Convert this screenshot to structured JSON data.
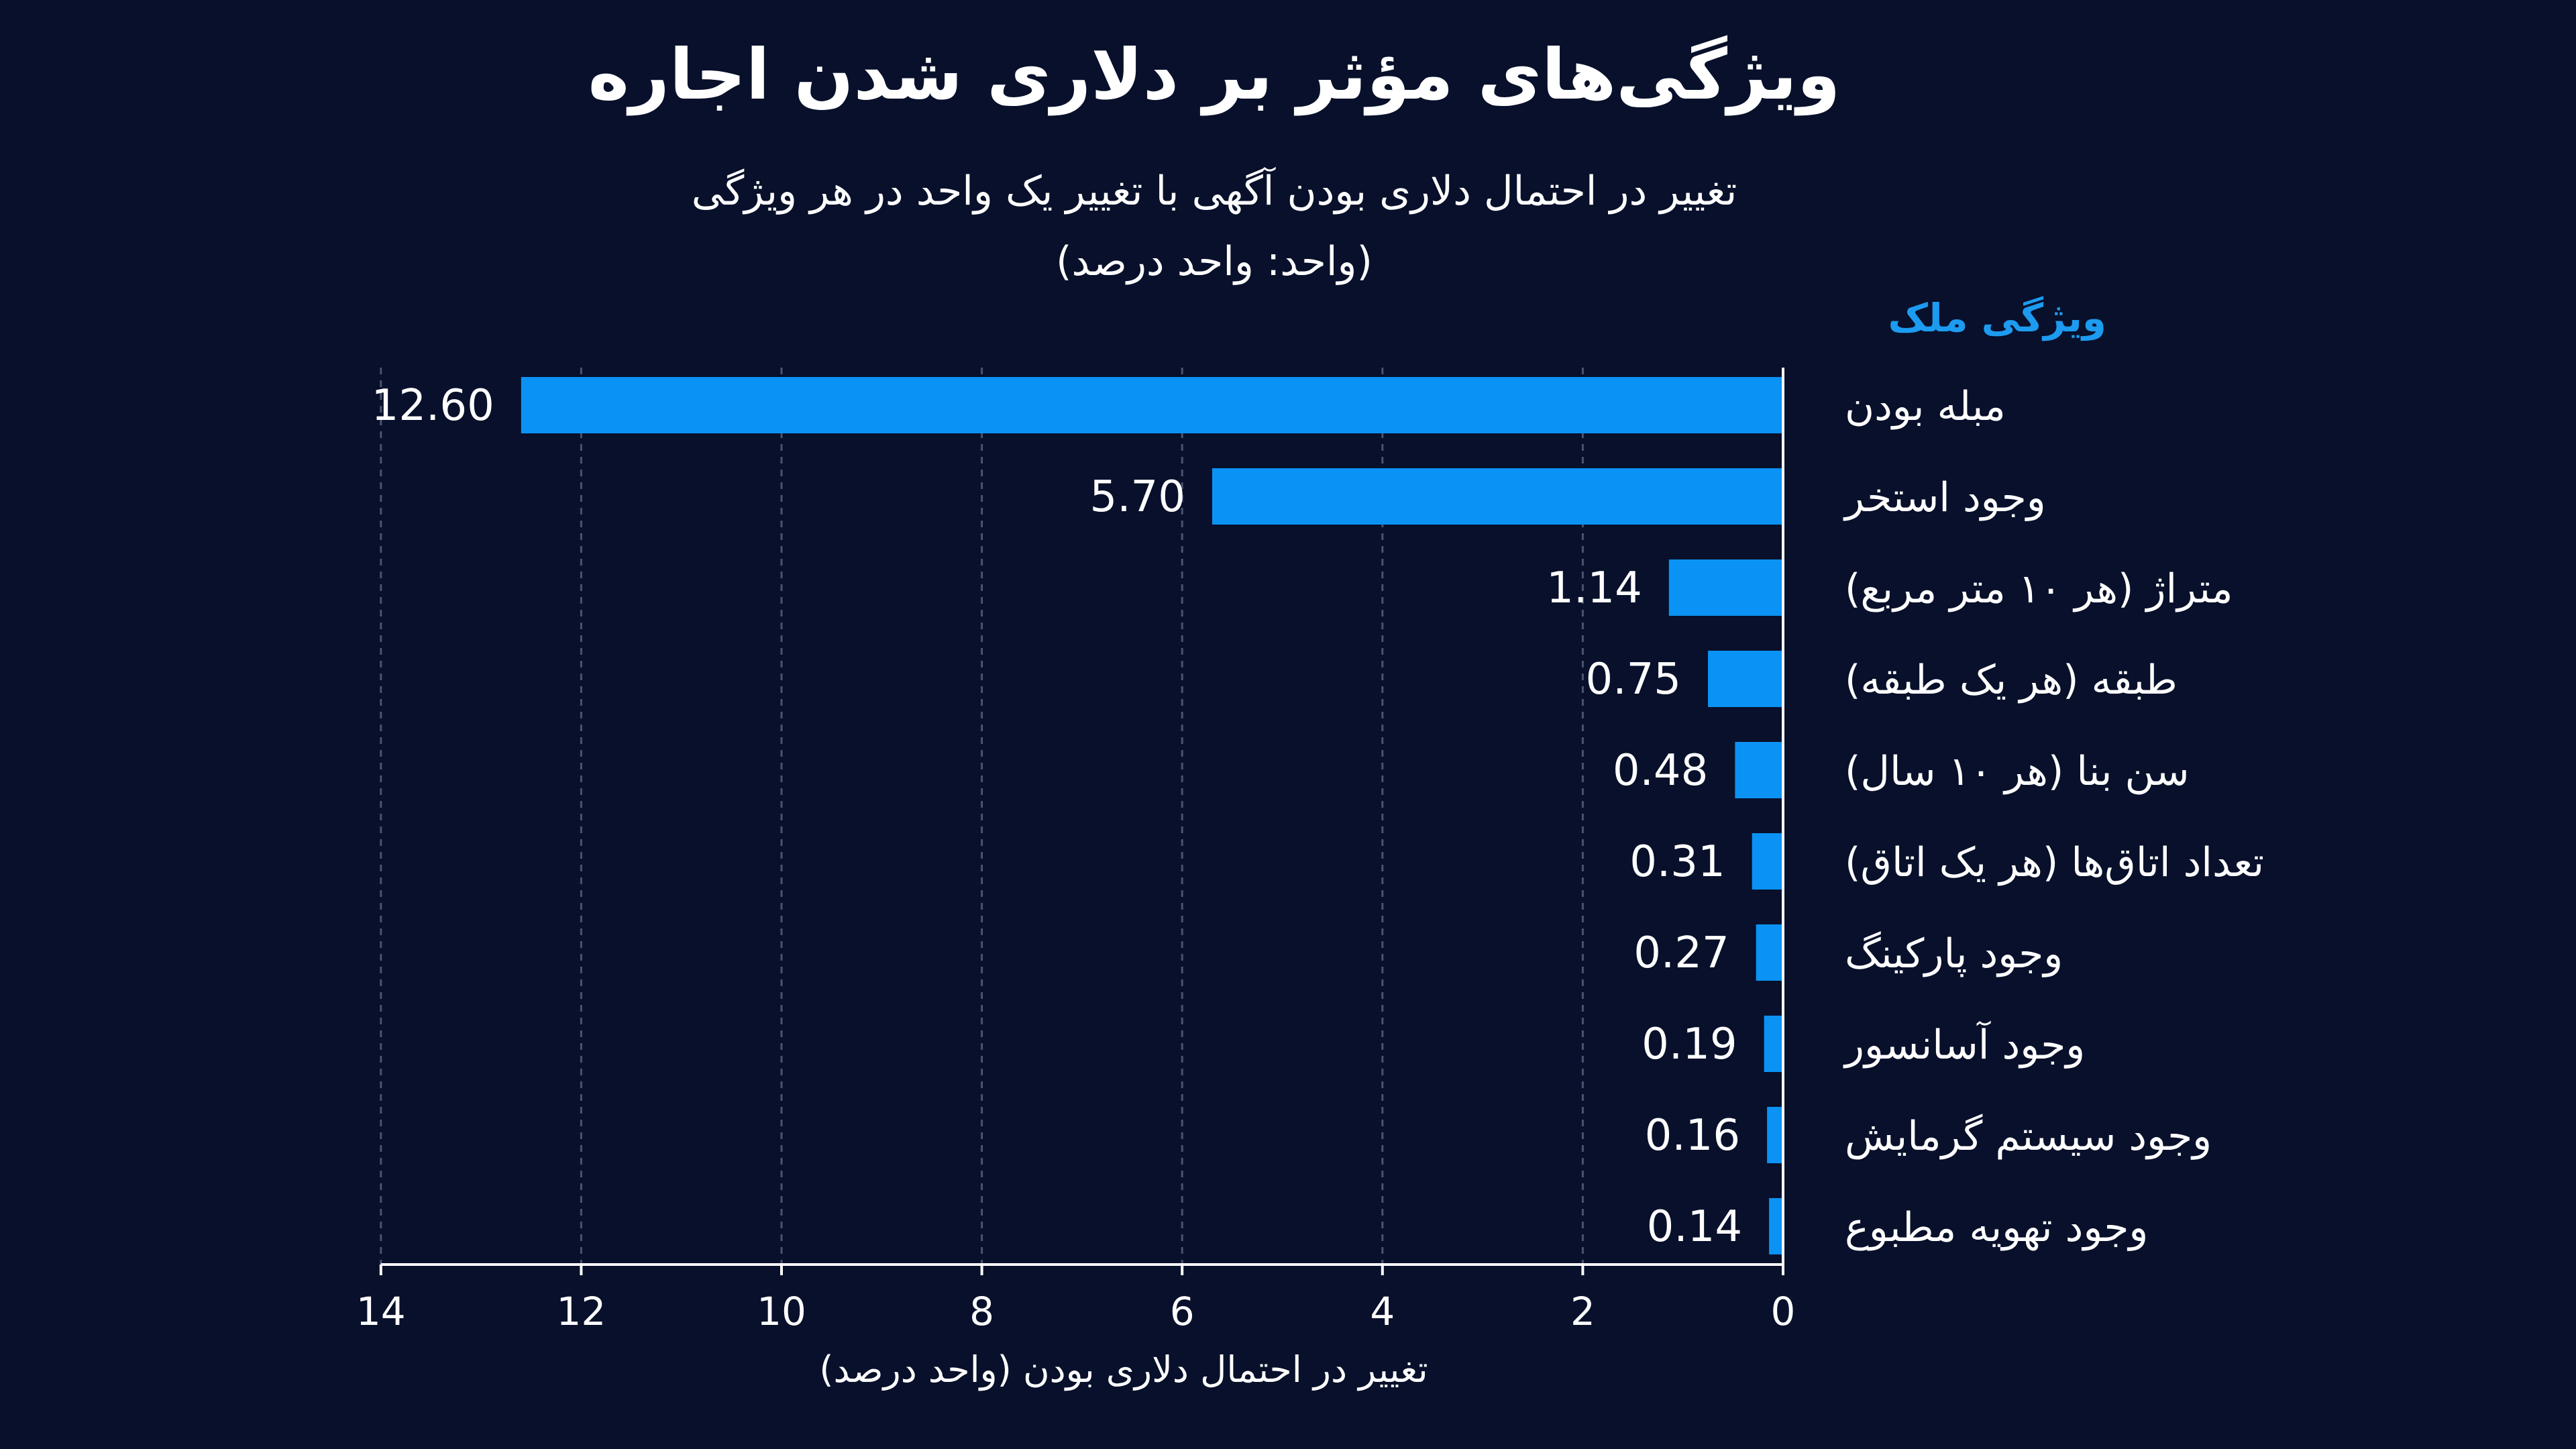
{
  "header": {
    "title": "ویژگی‌های مؤثر بر دلاری شدن اجاره",
    "subtitle_line1": "تغییر در احتمال دلاری بودن آگهی با تغییر یک واحد در هر ویژگی",
    "subtitle_line2": "(واحد: واحد درصد)"
  },
  "colors": {
    "background": "#08102b",
    "bar": "#0a93f4",
    "accent_text": "#1c9bf0",
    "grid": "#4a5370",
    "text": "#ffffff"
  },
  "chart_data": {
    "type": "bar",
    "orientation": "horizontal",
    "x_direction": "reversed",
    "category_axis_label": "ویژگی ملک",
    "categories": [
      "مبله بودن",
      "وجود استخر",
      "متراژ (هر ۱۰ متر مربع)",
      "طبقه (هر یک طبقه)",
      "سن بنا (هر ۱۰ سال)",
      "تعداد اتاق‌ها (هر یک اتاق)",
      "وجود پارکینگ",
      "وجود آسانسور",
      "وجود سیستم گرمایش",
      "وجود تهویه مطبوع"
    ],
    "values": [
      12.6,
      5.7,
      1.14,
      0.75,
      0.48,
      0.31,
      0.27,
      0.19,
      0.16,
      0.14
    ],
    "value_labels": [
      "12.60",
      "5.70",
      "1.14",
      "0.75",
      "0.48",
      "0.31",
      "0.27",
      "0.19",
      "0.16",
      "0.14"
    ],
    "xlim": [
      0,
      14
    ],
    "xticks": [
      0,
      2,
      4,
      6,
      8,
      10,
      12,
      14
    ],
    "xlabel": "تغییر در احتمال دلاری بودن (واحد درصد)",
    "grid": "vertical dashed"
  }
}
